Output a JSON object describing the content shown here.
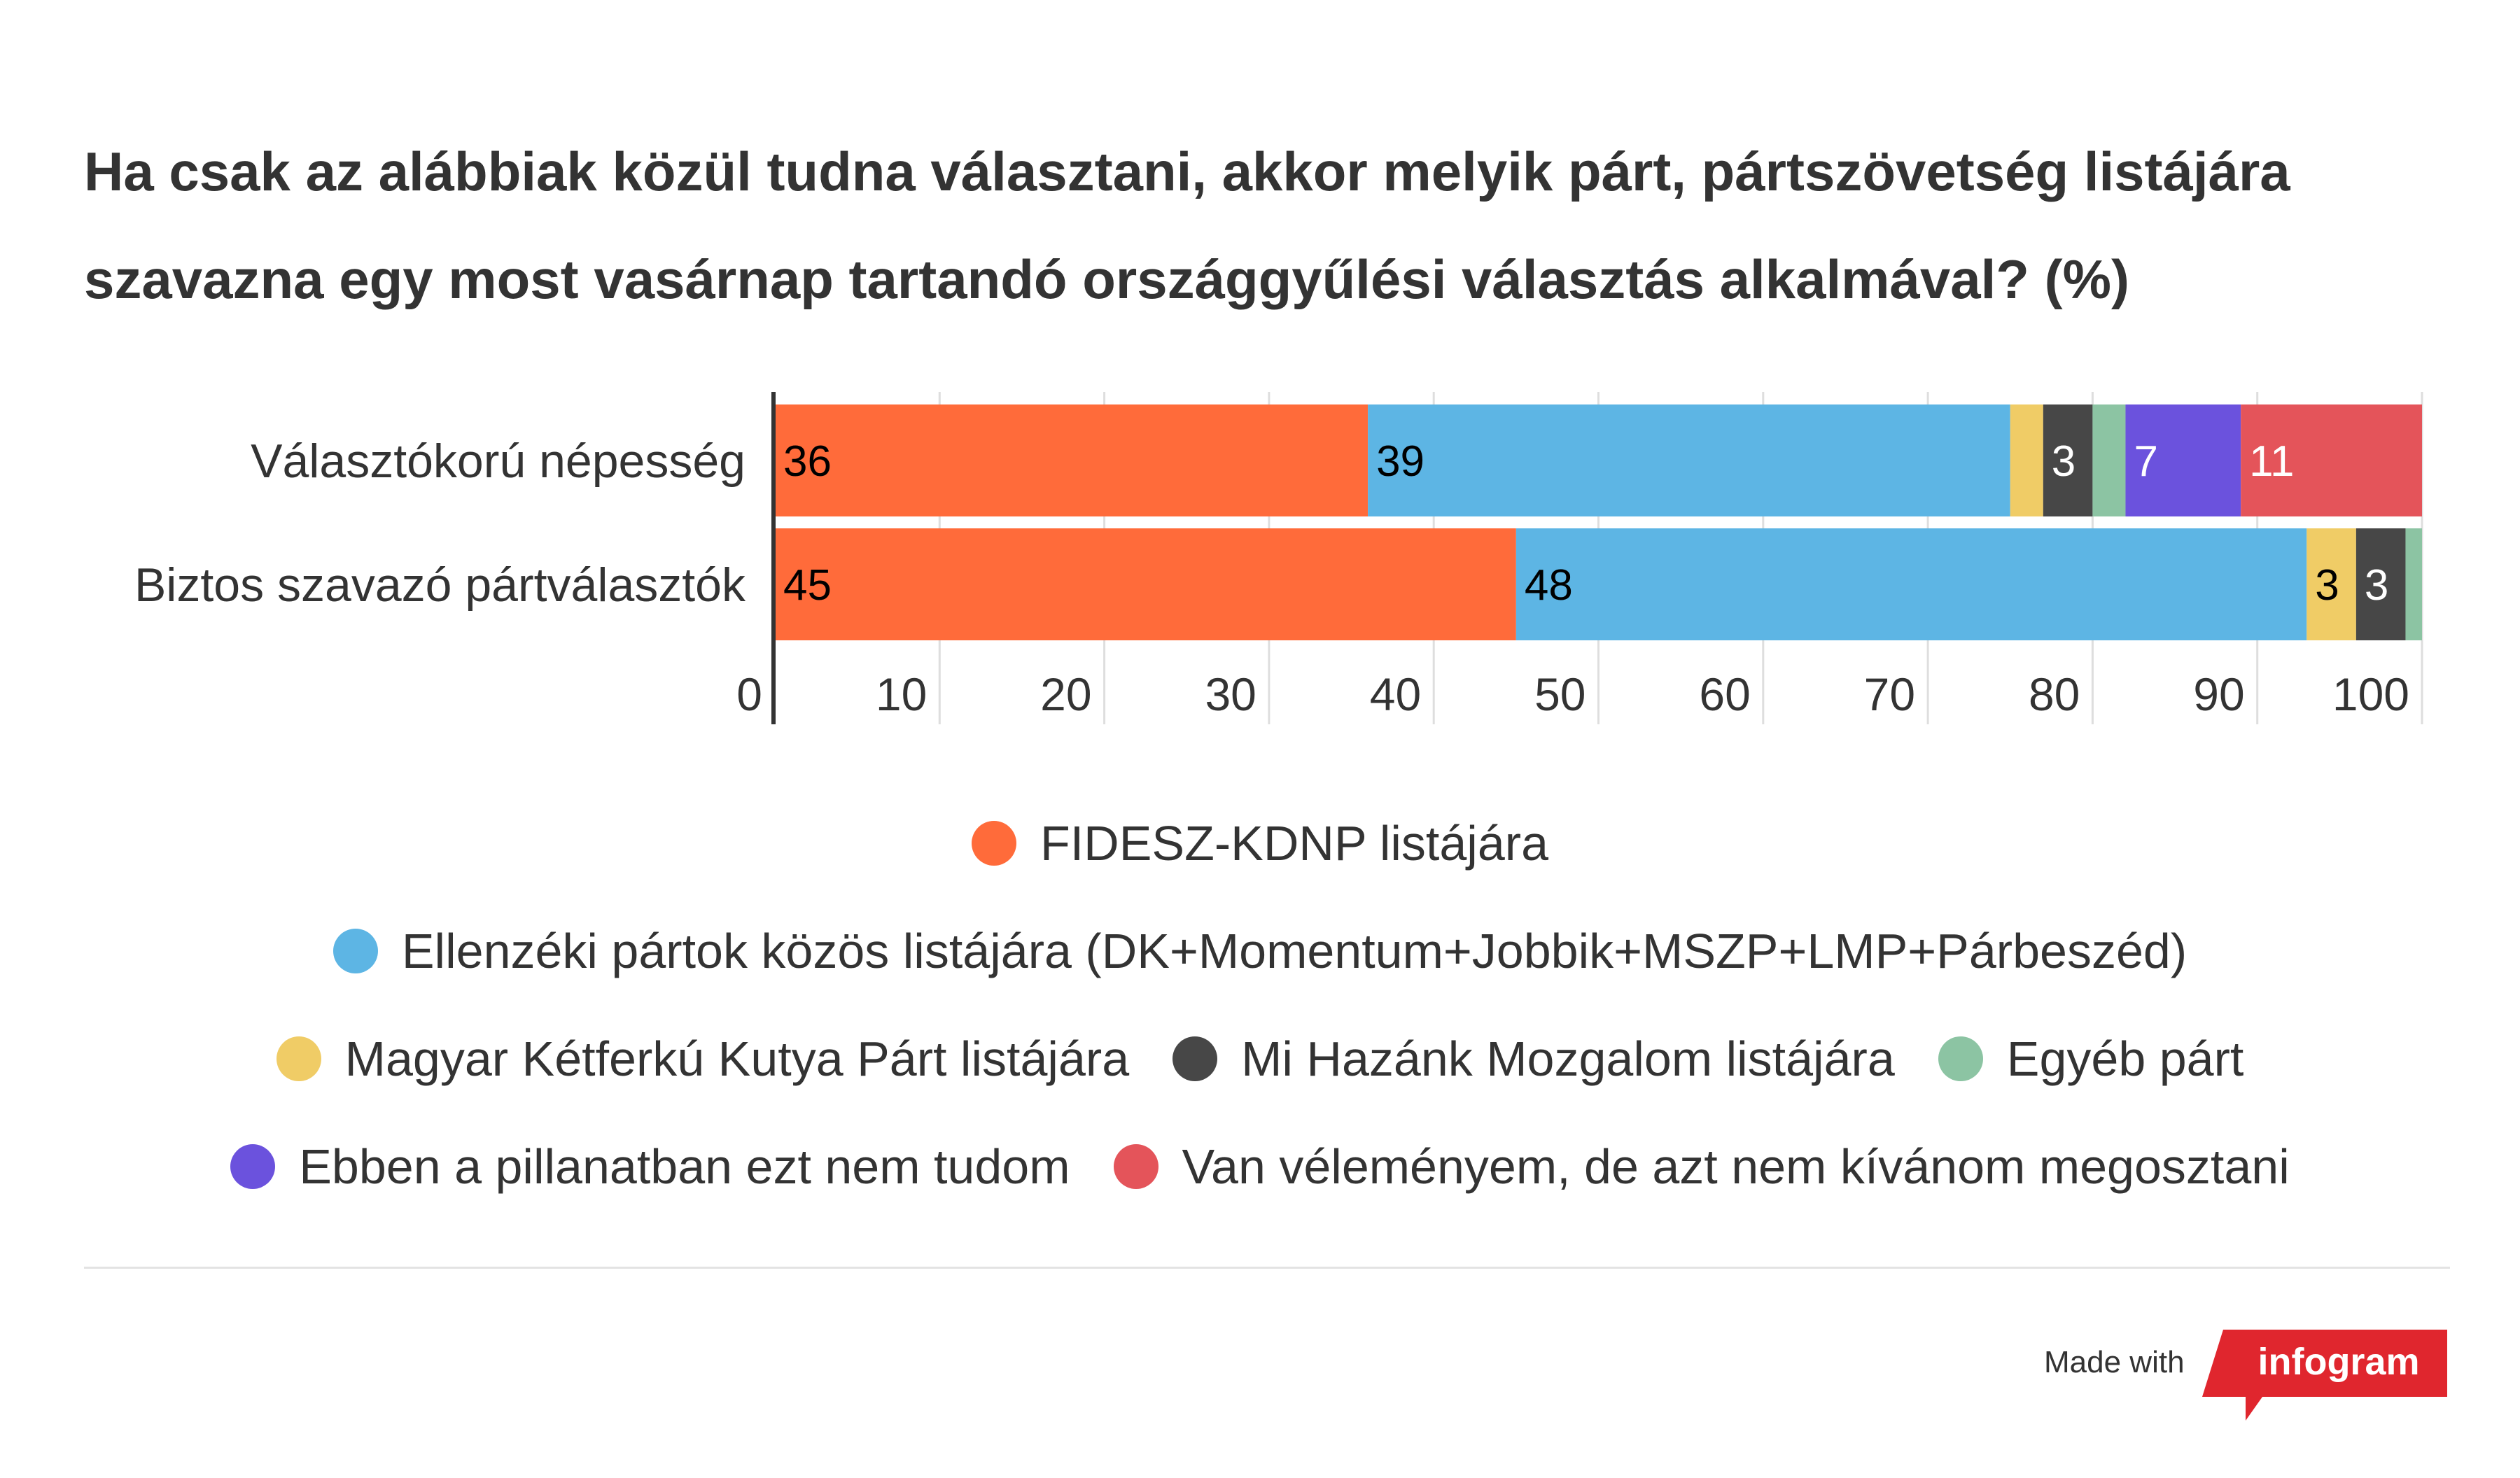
{
  "chart_data": {
    "type": "bar",
    "orientation": "horizontal",
    "stacked": true,
    "title": "Ha csak az alábbiak közül tudna választani, akkor melyik  párt, pártszövetség listájára szavazna egy most vasárnap tartandó országgyűlési választás alkalmával? (%)",
    "title_lines": [
      "Ha csak az alábbiak közül tudna választani, akkor melyik  párt, pártszövetség listájára",
      "szavazna egy most vasárnap tartandó országgyűlési választás alkalmával? (%)"
    ],
    "categories": [
      "Választókorú népesség",
      "Biztos szavazó pártválasztók"
    ],
    "series": [
      {
        "name": "FIDESZ-KDNP listájára",
        "color": "#ff6b3a",
        "values": [
          36,
          45
        ],
        "label_color": "#000000"
      },
      {
        "name": "Ellenzéki pártok közös  listájára (DK+Momentum+Jobbik+MSZP+LMP+Párbeszéd)",
        "color": "#5db5e4",
        "values": [
          39,
          48
        ],
        "label_color": "#000000"
      },
      {
        "name": "Magyar Kétferkú Kutya Párt listájára",
        "color": "#f0cc66",
        "values": [
          2,
          3
        ],
        "label_color": "#000000"
      },
      {
        "name": "Mi Hazánk Mozgalom listájára",
        "color": "#474747",
        "values": [
          3,
          3
        ],
        "label_color": "#ffffff"
      },
      {
        "name": "Egyéb párt",
        "color": "#8cc4a3",
        "values": [
          2,
          1
        ],
        "label_color": "#000000"
      },
      {
        "name": "Ebben a pillanatban ezt nem tudom",
        "color": "#6b52dd",
        "values": [
          7,
          0
        ],
        "label_color": "#ffffff"
      },
      {
        "name": "Van véleményem, de azt nem kívánom megosztani",
        "color": "#e4545a",
        "values": [
          11,
          0
        ],
        "label_color": "#ffffff"
      }
    ],
    "data_labels": [
      [
        "36",
        "39",
        "",
        "3",
        "",
        "7",
        "11"
      ],
      [
        "45",
        "48",
        "3",
        "3",
        "",
        "",
        ""
      ]
    ],
    "xlim": [
      0,
      100
    ],
    "x_ticks": [
      "0",
      "10",
      "20",
      "30",
      "40",
      "50",
      "60",
      "70",
      "80",
      "90",
      "100"
    ],
    "grid": true,
    "legend_position": "bottom"
  },
  "legend_rows": [
    [
      0
    ],
    [
      1
    ],
    [
      2,
      3,
      4
    ],
    [
      5,
      6
    ]
  ],
  "footer": {
    "made_with": "Made with",
    "brand": "infogram",
    "brand_color": "#e0262e"
  }
}
